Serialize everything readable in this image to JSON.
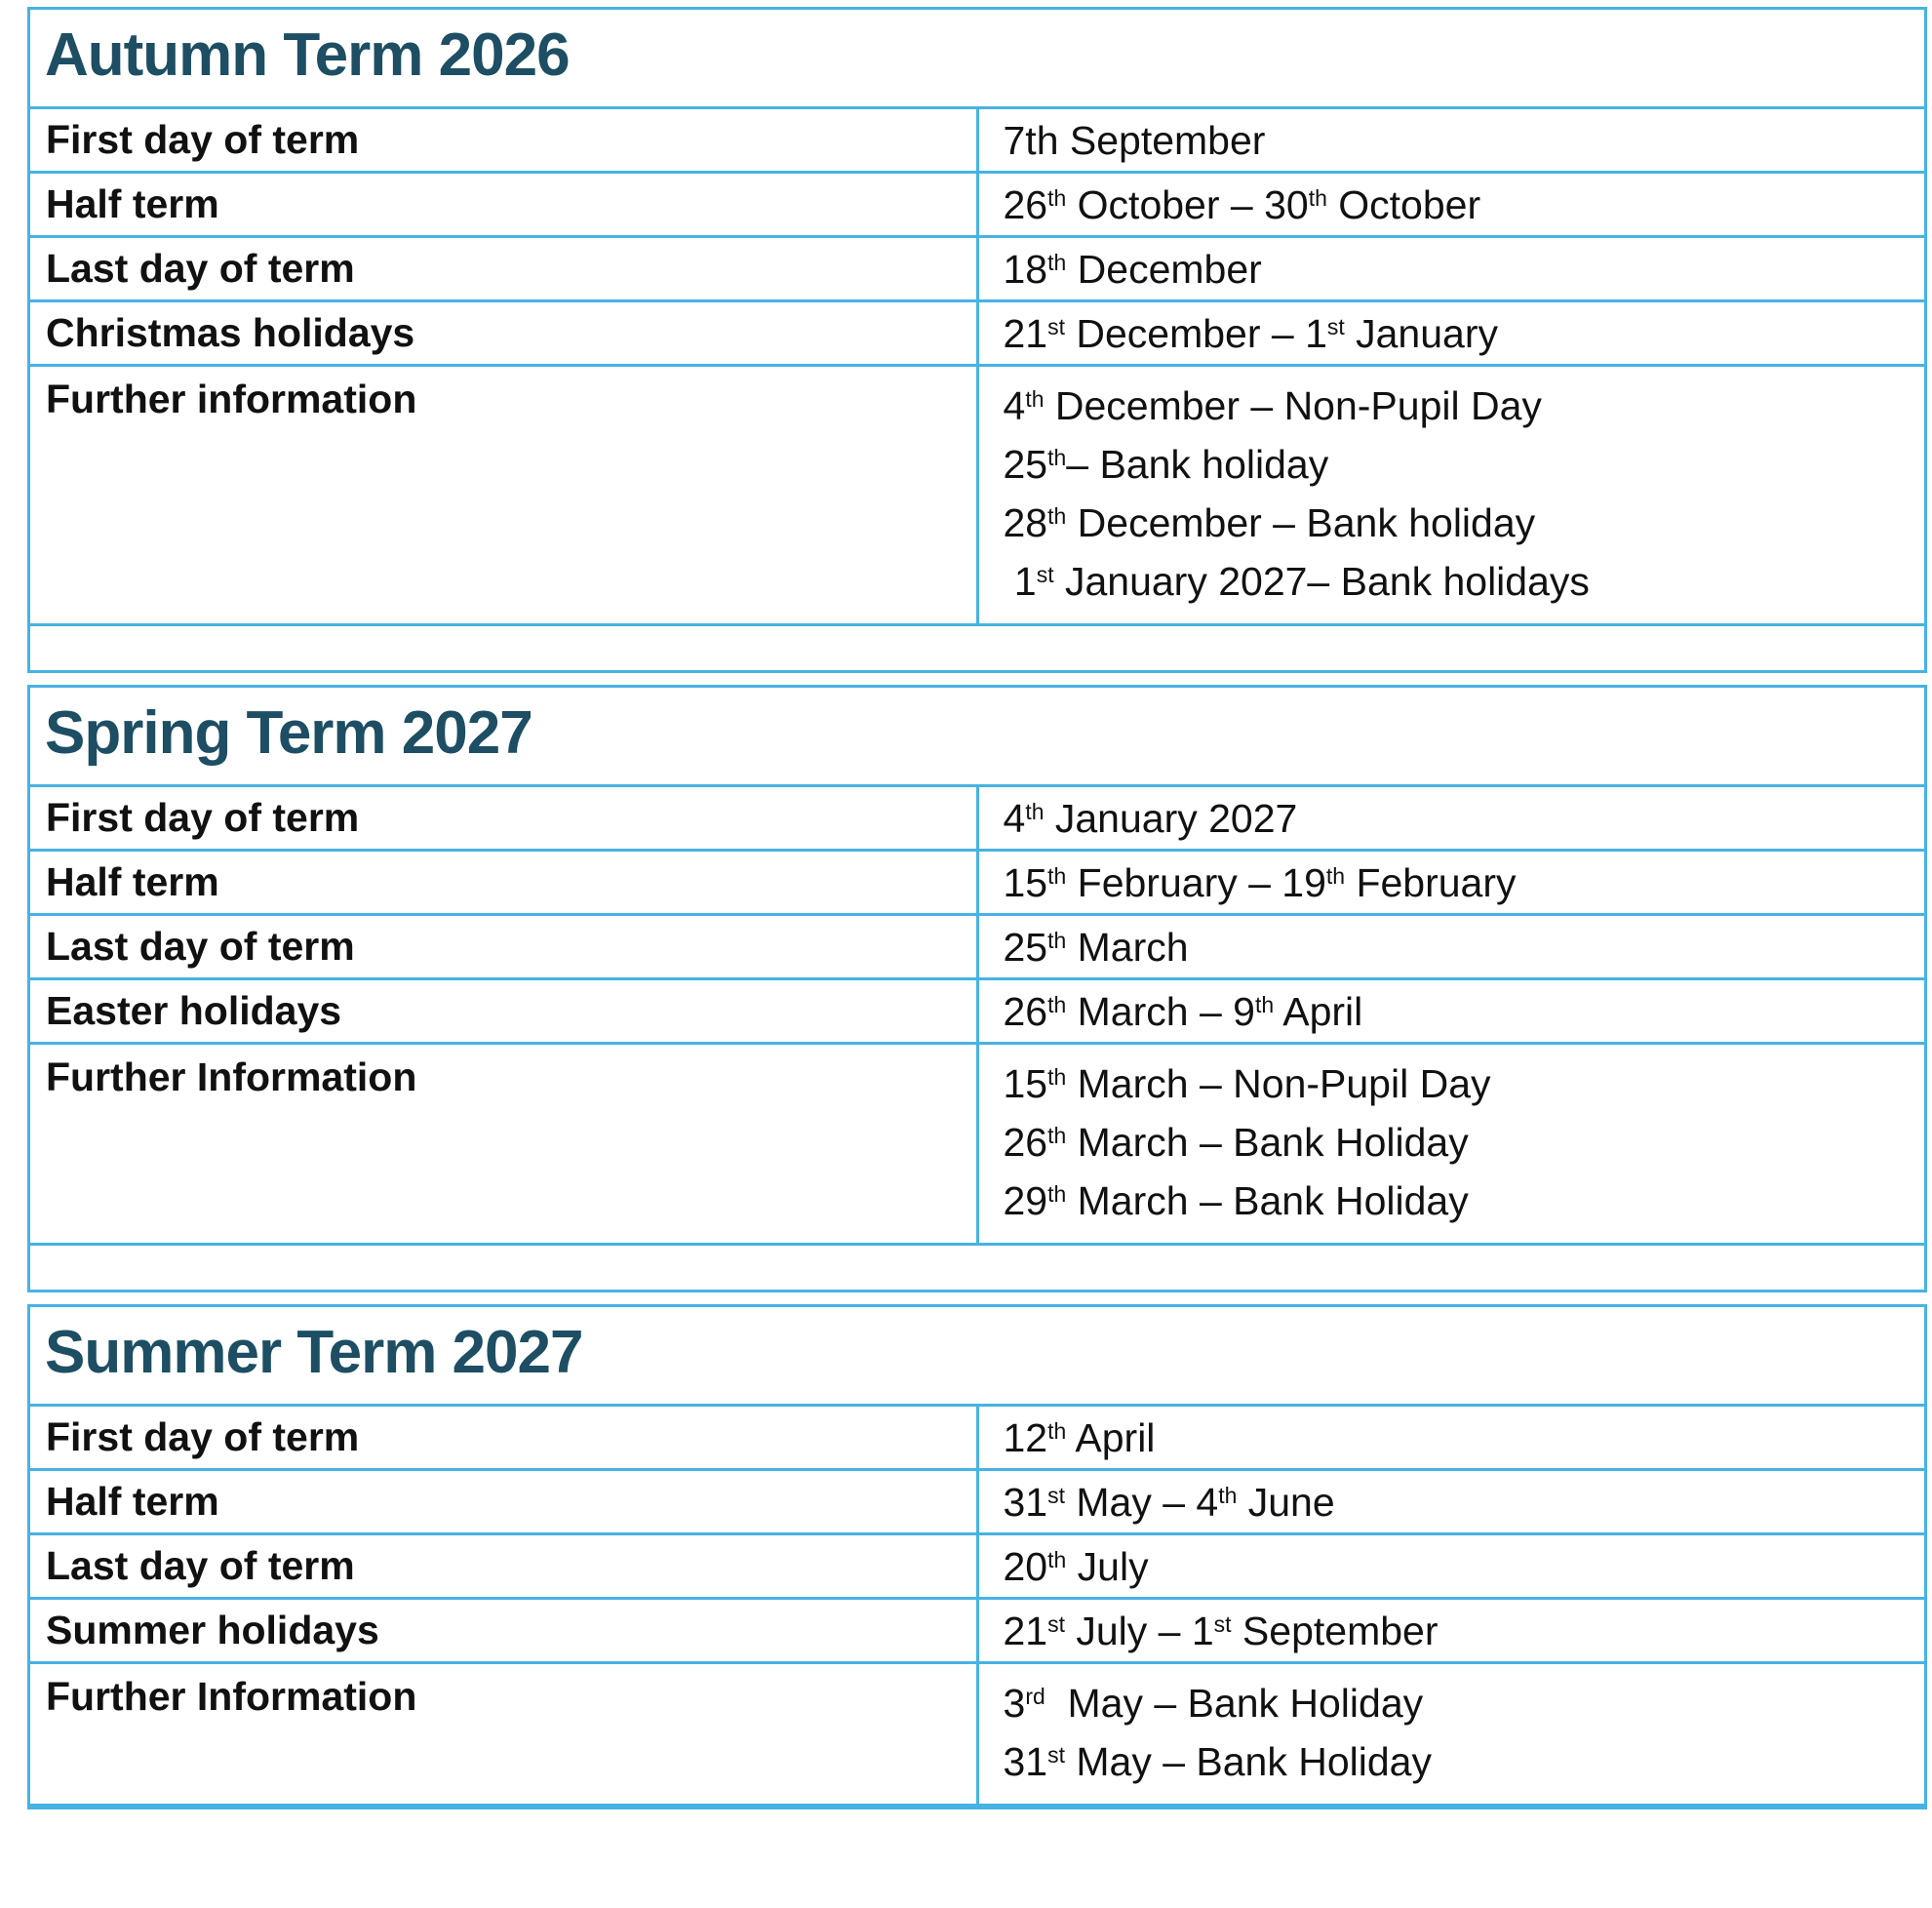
{
  "colors": {
    "border_blue": "#47B2E4",
    "heading_teal": "#1D4E63",
    "body_text": "#111111"
  },
  "tables": [
    {
      "heading": "Autumn Term 2026",
      "rows": [
        {
          "label": "First day of term",
          "lines": [
            "7th September"
          ]
        },
        {
          "label": "Half term",
          "lines": [
            "26^th^ October – 30^th^ October"
          ]
        },
        {
          "label": "Last day of term",
          "lines": [
            "18^th^ December"
          ]
        },
        {
          "label": "Christmas holidays",
          "lines": [
            "21^st^ December – 1^st^ January"
          ]
        },
        {
          "label": "Further information",
          "lines": [
            "4^th^ December – Non-Pupil Day",
            "25^th^– Bank holiday",
            "28^th^ December – Bank holiday",
            " 1^st^ January 2027– Bank holidays"
          ]
        }
      ]
    },
    {
      "heading": "Spring Term 2027",
      "rows": [
        {
          "label": "First day of term",
          "lines": [
            "4^th^ January 2027"
          ]
        },
        {
          "label": "Half term",
          "lines": [
            "15^th^ February – 19^th^ February"
          ]
        },
        {
          "label": "Last day of term",
          "lines": [
            "25^th^ March"
          ]
        },
        {
          "label": "Easter holidays",
          "lines": [
            "26^th^ March – 9^th^ April"
          ]
        },
        {
          "label": "Further Information",
          "lines": [
            "15^th^ March – Non-Pupil Day",
            "26^th^ March – Bank Holiday",
            "29^th^ March – Bank Holiday"
          ]
        }
      ]
    },
    {
      "heading": "Summer Term 2027",
      "rows": [
        {
          "label": "First day of term",
          "lines": [
            "12^th^ April"
          ]
        },
        {
          "label": "Half term",
          "lines": [
            "31^st^ May – 4^th^ June"
          ]
        },
        {
          "label": "Last day of term",
          "lines": [
            "20^th^ July"
          ]
        },
        {
          "label": "Summer holidays",
          "lines": [
            "21^st^ July – 1^st^ September"
          ]
        },
        {
          "label": "Further Information",
          "lines": [
            "3^rd^  May – Bank Holiday",
            "31^st^ May – Bank Holiday"
          ]
        }
      ]
    }
  ]
}
